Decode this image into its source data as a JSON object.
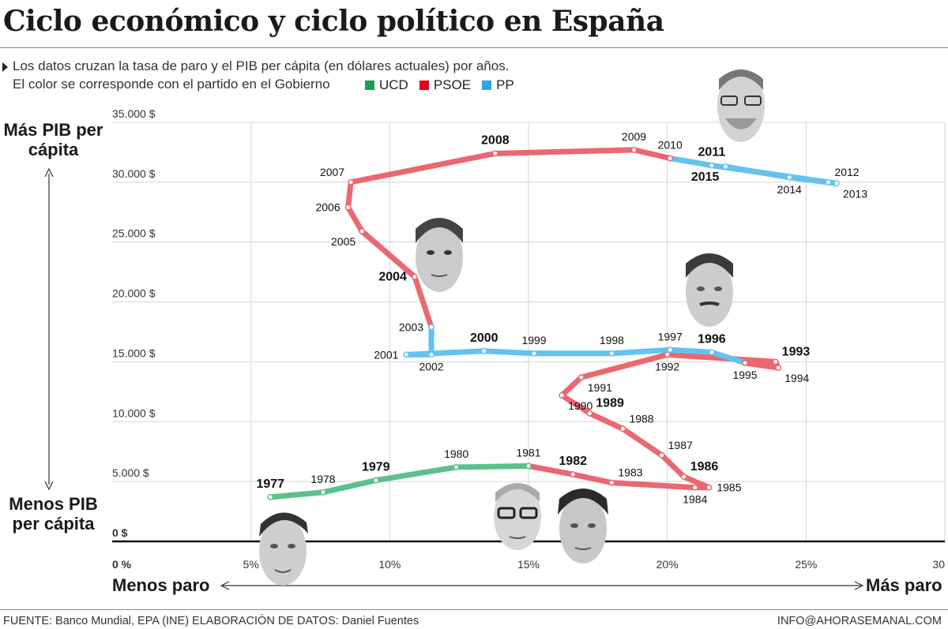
{
  "title": "Ciclo económico y ciclo político en España",
  "subtitle_line1": "Los datos cruzan la tasa de paro y el PIB per cápita (en dólares actuales) por años.",
  "subtitle_line2": "El color se corresponde con el partido en el Gobierno",
  "legend": [
    {
      "label": "UCD",
      "color": "#1a9e4f"
    },
    {
      "label": "PSOE",
      "color": "#e30613"
    },
    {
      "label": "PP",
      "color": "#29a9e1"
    }
  ],
  "y_axis_top_label": "Más PIB per cápita",
  "y_axis_bottom_label": "Menos PIB per cápita",
  "x_axis_left_label": "Menos paro",
  "x_axis_right_label": "Más paro",
  "footer_source": "FUENTE: Banco Mundial, EPA (INE) ELABORACIÓN DE DATOS: Daniel Fuentes",
  "footer_contact": "INFO@AHORASEMANAL.COM",
  "face_icons": [
    "suarez-portrait",
    "calvo-sotelo-portrait",
    "gonzalez-portrait",
    "aznar-portrait",
    "zapatero-portrait",
    "rajoy-portrait"
  ],
  "chart_data": {
    "type": "line",
    "xlabel": "",
    "ylabel": "",
    "xlim": [
      0,
      30
    ],
    "ylim": [
      0,
      35000
    ],
    "x_ticks": [
      {
        "value": 0,
        "label": "0 %"
      },
      {
        "value": 5,
        "label": "5%"
      },
      {
        "value": 10,
        "label": "10%"
      },
      {
        "value": 15,
        "label": "15%"
      },
      {
        "value": 20,
        "label": "20%"
      },
      {
        "value": 25,
        "label": "25%"
      },
      {
        "value": 30,
        "label": "30"
      }
    ],
    "y_ticks": [
      {
        "value": 0,
        "label": "0 $"
      },
      {
        "value": 5000,
        "label": "5.000 $"
      },
      {
        "value": 10000,
        "label": "10.000 $"
      },
      {
        "value": 15000,
        "label": "15.000 $"
      },
      {
        "value": 20000,
        "label": "20.000 $"
      },
      {
        "value": 25000,
        "label": "25.000 $"
      },
      {
        "value": 30000,
        "label": "30.000 $"
      },
      {
        "value": 35000,
        "label": "35.000 $"
      }
    ],
    "grid": true,
    "colors": {
      "UCD": "#5cc08a",
      "PSOE": "#ea6870",
      "PP": "#64c2ee"
    },
    "points": [
      {
        "year": "1977",
        "x": 5.7,
        "y": 3700,
        "party": "UCD",
        "bold": true,
        "lpos": "above"
      },
      {
        "year": "1978",
        "x": 7.6,
        "y": 4100,
        "party": "UCD",
        "bold": false,
        "lpos": "above"
      },
      {
        "year": "1979",
        "x": 9.5,
        "y": 5100,
        "party": "UCD",
        "bold": true,
        "lpos": "above"
      },
      {
        "year": "1980",
        "x": 12.4,
        "y": 6200,
        "party": "UCD",
        "bold": false,
        "lpos": "above"
      },
      {
        "year": "1981",
        "x": 15.0,
        "y": 6300,
        "party": "UCD",
        "bold": false,
        "lpos": "above"
      },
      {
        "year": "1982",
        "x": 16.6,
        "y": 5600,
        "party": "PSOE",
        "bold": true,
        "lpos": "above"
      },
      {
        "year": "1983",
        "x": 18.0,
        "y": 4900,
        "party": "PSOE",
        "bold": false,
        "lpos": "right-up"
      },
      {
        "year": "1984",
        "x": 21.0,
        "y": 4500,
        "party": "PSOE",
        "bold": false,
        "lpos": "below"
      },
      {
        "year": "1985",
        "x": 21.5,
        "y": 4500,
        "party": "PSOE",
        "bold": false,
        "lpos": "right"
      },
      {
        "year": "1986",
        "x": 20.6,
        "y": 5400,
        "party": "PSOE",
        "bold": true,
        "lpos": "right-up"
      },
      {
        "year": "1987",
        "x": 19.8,
        "y": 7200,
        "party": "PSOE",
        "bold": false,
        "lpos": "right-up"
      },
      {
        "year": "1988",
        "x": 18.4,
        "y": 9400,
        "party": "PSOE",
        "bold": false,
        "lpos": "right-up"
      },
      {
        "year": "1989",
        "x": 17.2,
        "y": 10700,
        "party": "PSOE",
        "bold": true,
        "lpos": "right-up"
      },
      {
        "year": "1990",
        "x": 16.2,
        "y": 12200,
        "party": "PSOE",
        "bold": false,
        "lpos": "right-down"
      },
      {
        "year": "1991",
        "x": 16.9,
        "y": 13700,
        "party": "PSOE",
        "bold": false,
        "lpos": "right-down"
      },
      {
        "year": "1992",
        "x": 20.0,
        "y": 15600,
        "party": "PSOE",
        "bold": false,
        "lpos": "below"
      },
      {
        "year": "1993",
        "x": 23.9,
        "y": 15000,
        "party": "PSOE",
        "bold": true,
        "lpos": "right-up"
      },
      {
        "year": "1994",
        "x": 24.0,
        "y": 14500,
        "party": "PSOE",
        "bold": false,
        "lpos": "right-down"
      },
      {
        "year": "1995",
        "x": 22.8,
        "y": 14900,
        "party": "PSOE",
        "bold": false,
        "lpos": "below"
      },
      {
        "year": "1996",
        "x": 21.6,
        "y": 15800,
        "party": "PP",
        "bold": true,
        "lpos": "above"
      },
      {
        "year": "1997",
        "x": 20.1,
        "y": 16000,
        "party": "PP",
        "bold": false,
        "lpos": "above"
      },
      {
        "year": "1998",
        "x": 18.0,
        "y": 15700,
        "party": "PP",
        "bold": false,
        "lpos": "above"
      },
      {
        "year": "1999",
        "x": 15.2,
        "y": 15700,
        "party": "PP",
        "bold": false,
        "lpos": "above"
      },
      {
        "year": "2000",
        "x": 13.4,
        "y": 15900,
        "party": "PP",
        "bold": true,
        "lpos": "above"
      },
      {
        "year": "2001",
        "x": 10.6,
        "y": 15600,
        "party": "PP",
        "bold": false,
        "lpos": "left"
      },
      {
        "year": "2002",
        "x": 11.5,
        "y": 15600,
        "party": "PP",
        "bold": false,
        "lpos": "below"
      },
      {
        "year": "2003",
        "x": 11.5,
        "y": 17900,
        "party": "PP",
        "bold": false,
        "lpos": "left"
      },
      {
        "year": "2004",
        "x": 10.9,
        "y": 22100,
        "party": "PSOE",
        "bold": true,
        "lpos": "left"
      },
      {
        "year": "2005",
        "x": 9.0,
        "y": 25900,
        "party": "PSOE",
        "bold": false,
        "lpos": "left-down"
      },
      {
        "year": "2006",
        "x": 8.5,
        "y": 27900,
        "party": "PSOE",
        "bold": false,
        "lpos": "left"
      },
      {
        "year": "2007",
        "x": 8.6,
        "y": 30000,
        "party": "PSOE",
        "bold": false,
        "lpos": "left-up"
      },
      {
        "year": "2008",
        "x": 13.8,
        "y": 32400,
        "party": "PSOE",
        "bold": true,
        "lpos": "above"
      },
      {
        "year": "2009",
        "x": 18.8,
        "y": 32700,
        "party": "PSOE",
        "bold": false,
        "lpos": "above"
      },
      {
        "year": "2010",
        "x": 20.1,
        "y": 32000,
        "party": "PSOE",
        "bold": false,
        "lpos": "above"
      },
      {
        "year": "2011",
        "x": 21.6,
        "y": 31400,
        "party": "PP",
        "bold": true,
        "lpos": "above"
      },
      {
        "year": "2012",
        "x": 25.8,
        "y": 30000,
        "party": "PP",
        "bold": false,
        "lpos": "right-up"
      },
      {
        "year": "2013",
        "x": 26.1,
        "y": 29900,
        "party": "PP",
        "bold": false,
        "lpos": "right-down"
      },
      {
        "year": "2014",
        "x": 24.4,
        "y": 30400,
        "party": "PP",
        "bold": false,
        "lpos": "below"
      },
      {
        "year": "2015",
        "x": 22.1,
        "y": 31300,
        "party": "PP",
        "bold": true,
        "lpos": "left-down"
      }
    ]
  }
}
